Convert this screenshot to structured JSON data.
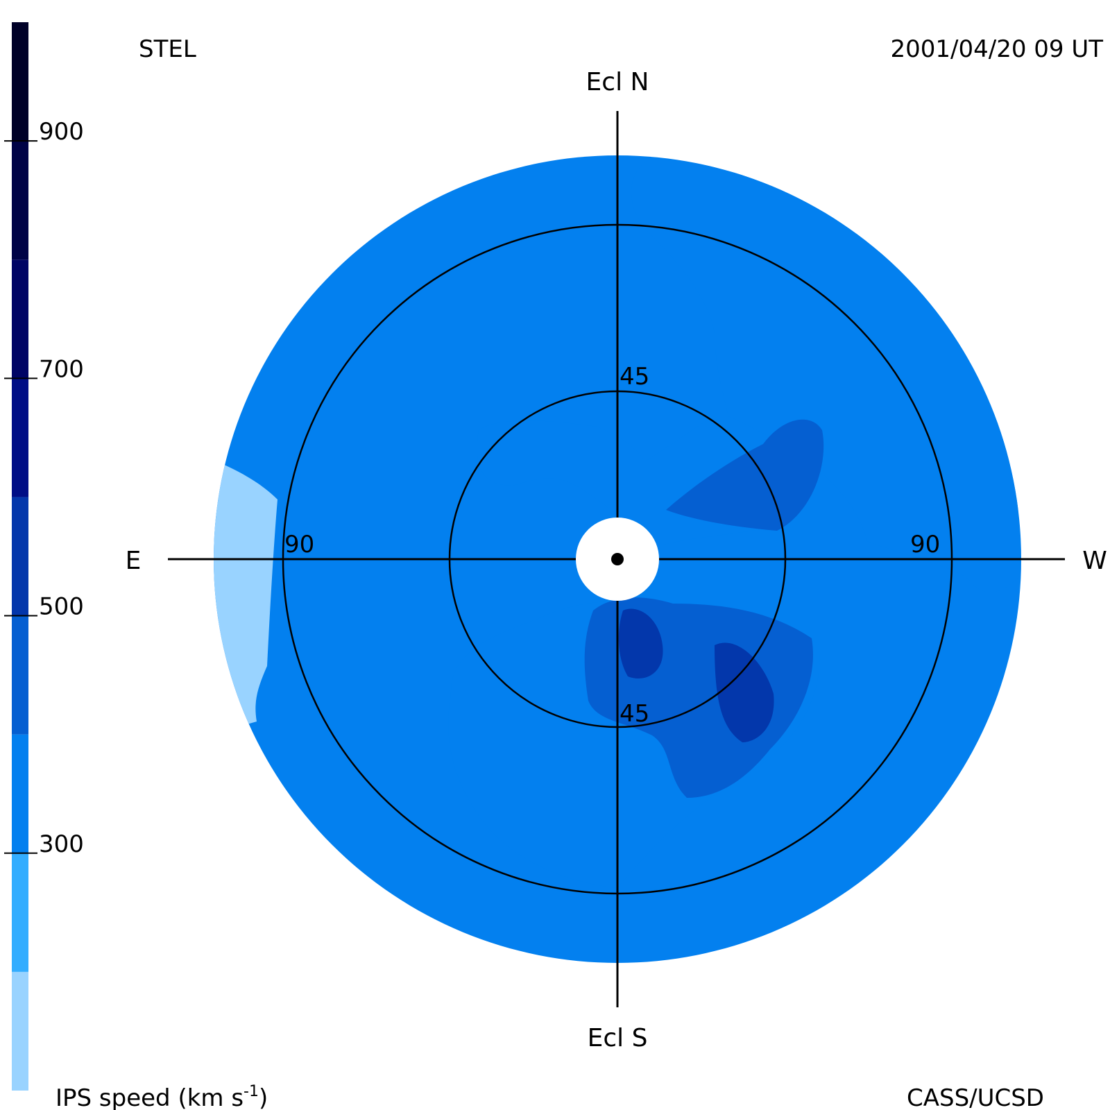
{
  "header": {
    "observatory": "STEL",
    "timestamp": "2001/04/20 09 UT"
  },
  "directions": {
    "north": "Ecl N",
    "south": "Ecl S",
    "east": "E",
    "west": "W"
  },
  "footer": {
    "credit": "CASS/UCSD"
  },
  "colorbar": {
    "label_prefix": "IPS speed (km s",
    "label_exp": "-1",
    "label_suffix": ")",
    "levels": [
      {
        "min": 100,
        "max": 200,
        "color": "#99d3ff"
      },
      {
        "min": 200,
        "max": 300,
        "color": "#33adff"
      },
      {
        "min": 300,
        "max": 400,
        "color": "#0380ef"
      },
      {
        "min": 400,
        "max": 500,
        "color": "#055fd1"
      },
      {
        "min": 500,
        "max": 600,
        "color": "#0337ab"
      },
      {
        "min": 600,
        "max": 700,
        "color": "#000e86"
      },
      {
        "min": 700,
        "max": 800,
        "color": "#000465"
      },
      {
        "min": 800,
        "max": 900,
        "color": "#000346"
      },
      {
        "min": 900,
        "max": 1000,
        "color": "#000128"
      }
    ],
    "ticks": [
      900,
      700,
      500,
      300
    ],
    "range": [
      100,
      1000
    ]
  },
  "sky_map": {
    "elongation_rings": [
      45,
      90
    ],
    "ring_label_45_north": "45",
    "ring_label_45_south": "45",
    "ring_label_90_east": "90",
    "ring_label_90_west": "90",
    "background_level": 2
  }
}
